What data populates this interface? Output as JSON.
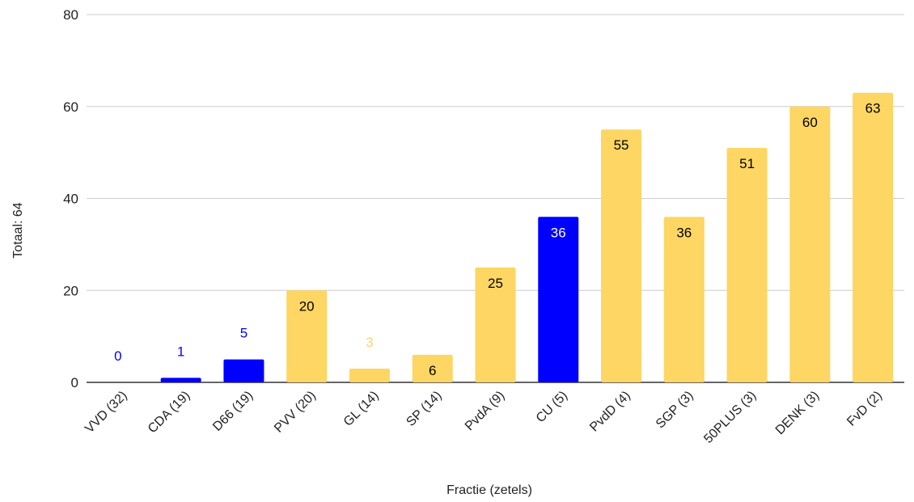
{
  "chart_data": {
    "type": "bar",
    "xlabel": "Fractie (zetels)",
    "ylabel": "Totaal: 64",
    "ylim": [
      0,
      80
    ],
    "yticks": [
      0,
      20,
      40,
      60,
      80
    ],
    "grid": true,
    "categories": [
      "VVD (32)",
      "CDA (19)",
      "D66 (19)",
      "PVV (20)",
      "GL (14)",
      "SP (14)",
      "PvdA (9)",
      "CU (5)",
      "PvdD (4)",
      "SGP (3)",
      "50PLUS (3)",
      "DENK (3)",
      "FvD (2)"
    ],
    "values": [
      0,
      1,
      5,
      20,
      3,
      6,
      25,
      36,
      55,
      36,
      51,
      60,
      63
    ],
    "bar_colors": [
      "#0000ff",
      "#0000ff",
      "#0000ff",
      "#fdd663",
      "#fdd663",
      "#fdd663",
      "#fdd663",
      "#0000ff",
      "#fdd663",
      "#fdd663",
      "#fdd663",
      "#fdd663",
      "#fdd663"
    ],
    "label_colors": [
      "#0000ff",
      "#0000ff",
      "#0000ff",
      "#000000",
      "#fdd663",
      "#000000",
      "#000000",
      "#ffffff",
      "#000000",
      "#000000",
      "#000000",
      "#000000",
      "#000000"
    ]
  }
}
